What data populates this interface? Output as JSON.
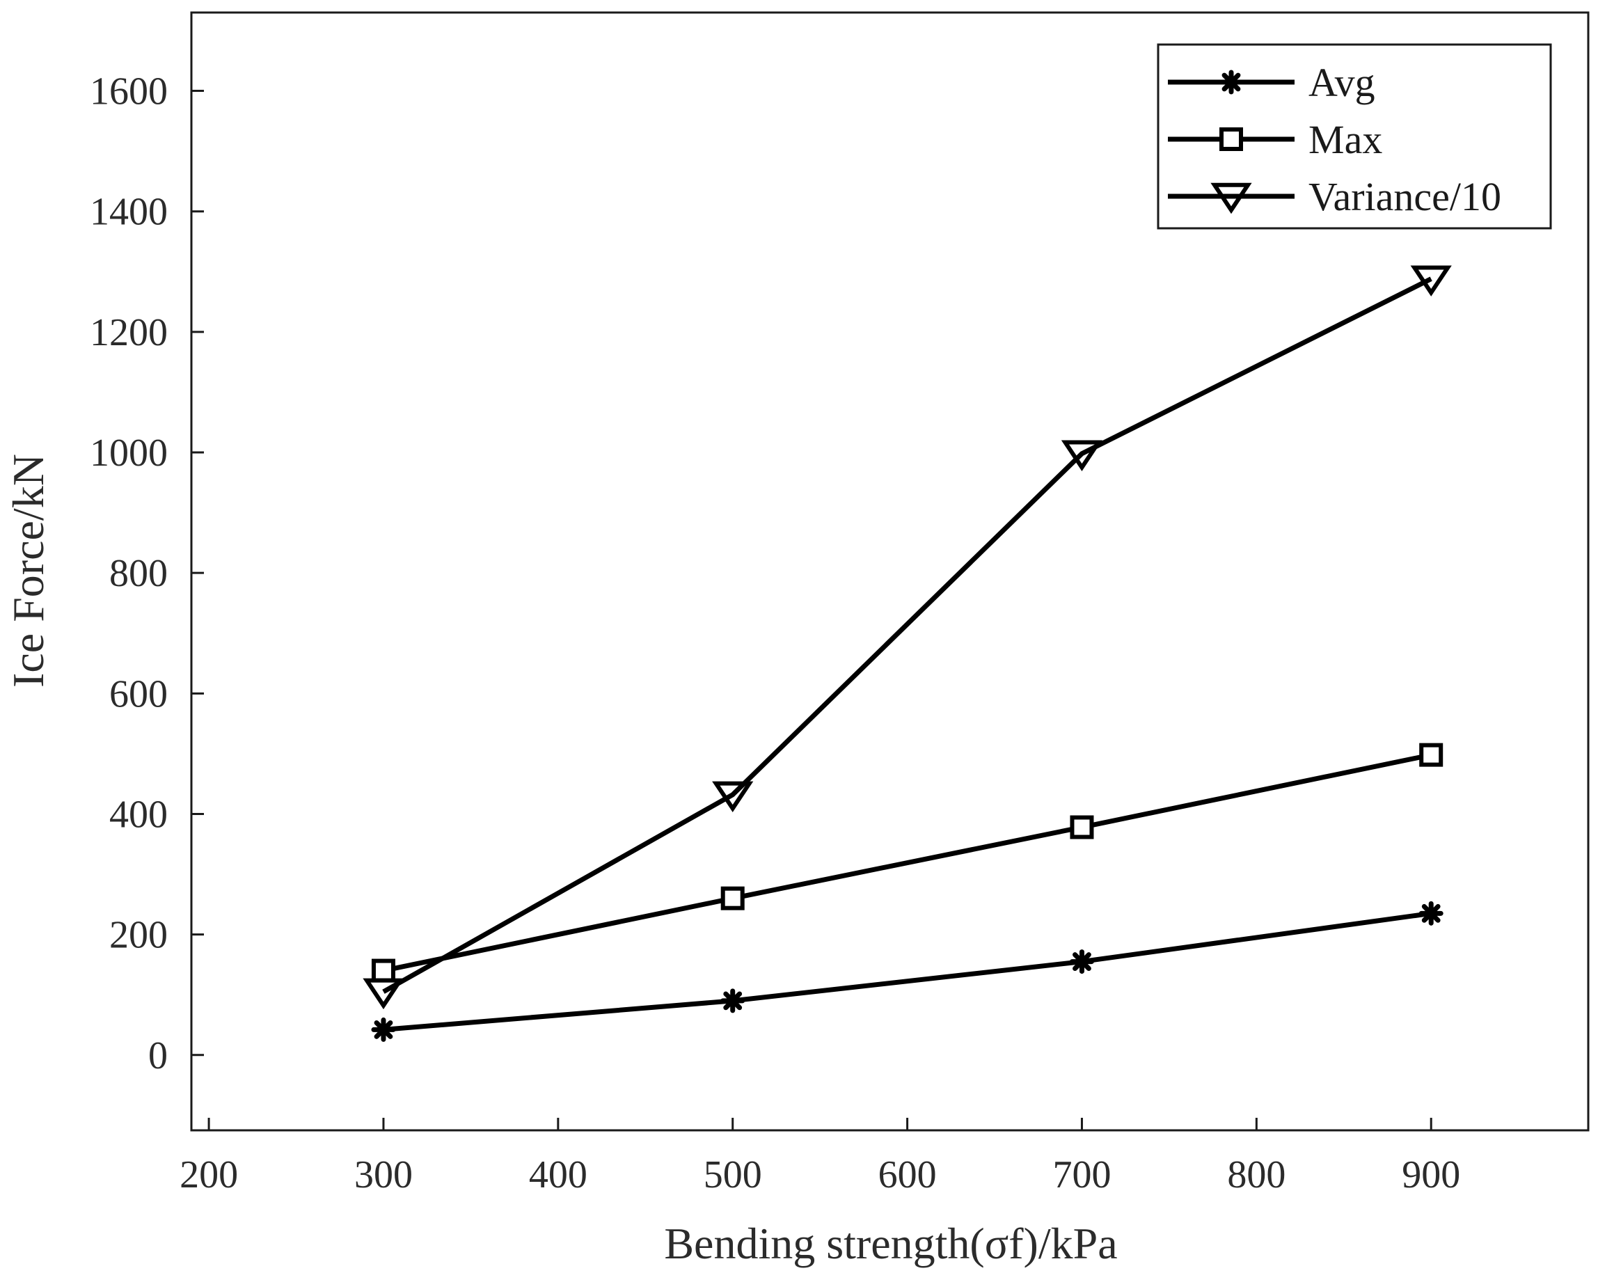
{
  "chart_data": {
    "type": "line",
    "title": "",
    "xlabel": "Bending  strength(σf)/kPa",
    "ylabel": "Ice  Force/kN",
    "xlim": [
      190,
      990
    ],
    "ylim": [
      -125,
      1730
    ],
    "xticks": [
      200,
      300,
      400,
      500,
      600,
      700,
      800,
      900
    ],
    "yticks": [
      0,
      200,
      400,
      600,
      800,
      1000,
      1200,
      1400,
      1600
    ],
    "x": [
      300,
      500,
      700,
      900
    ],
    "series": [
      {
        "name": "Avg",
        "marker": "asterisk",
        "values": [
          42,
          90,
          155,
          235
        ]
      },
      {
        "name": "Max",
        "marker": "square",
        "values": [
          140,
          260,
          378,
          498
        ]
      },
      {
        "name": "Variance/10",
        "marker": "triangle-down",
        "values": [
          105,
          432,
          998,
          1288
        ]
      }
    ],
    "legend_position": "top-right",
    "grid": false,
    "line_color": "#000000"
  }
}
